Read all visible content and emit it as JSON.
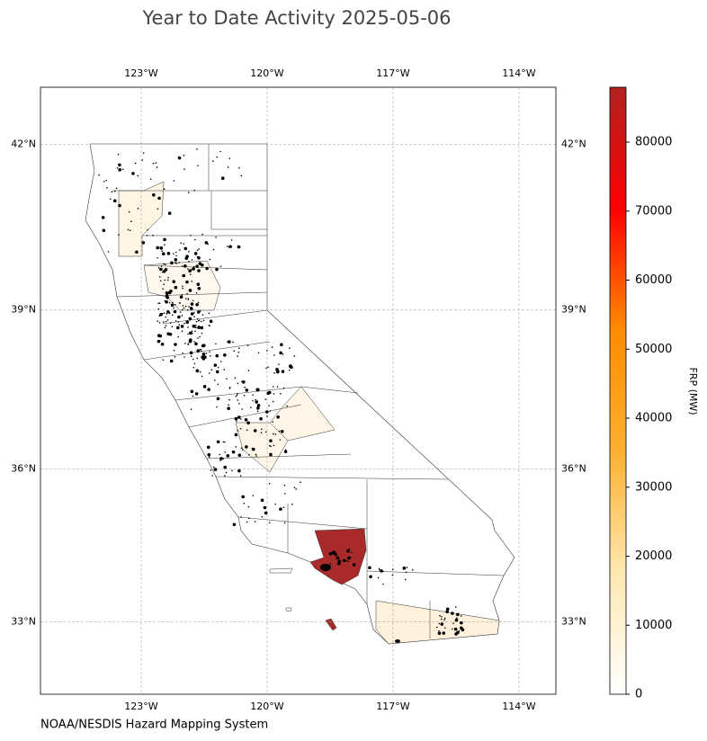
{
  "chart_data": {
    "type": "map",
    "title": "Year to Date Activity 2025-05-06",
    "projection": "mercator",
    "xlim": [
      -125.4,
      -113.12
    ],
    "ylim": [
      31.54,
      43.0
    ],
    "xticks": [
      {
        "value": -123,
        "label": "123°W"
      },
      {
        "value": -120,
        "label": "120°W"
      },
      {
        "value": -117,
        "label": "117°W"
      },
      {
        "value": -114,
        "label": "114°W"
      }
    ],
    "yticks": [
      {
        "value": 42,
        "label": "42°N"
      },
      {
        "value": 39,
        "label": "39°N"
      },
      {
        "value": 36,
        "label": "36°N"
      },
      {
        "value": 33,
        "label": "33°N"
      }
    ],
    "grid": true,
    "colorbar": {
      "label": "FRP (MW)",
      "clim": [
        0,
        87950
      ],
      "ticks": [
        0,
        10000,
        20000,
        30000,
        40000,
        50000,
        60000,
        70000,
        80000
      ],
      "colormap": [
        "#ffffff",
        "#fee8b0",
        "#fdb030",
        "#ff8c00",
        "#ff0000",
        "#b22222"
      ]
    },
    "credit": "NOAA/NESDIS Hazard Mapping System"
  }
}
